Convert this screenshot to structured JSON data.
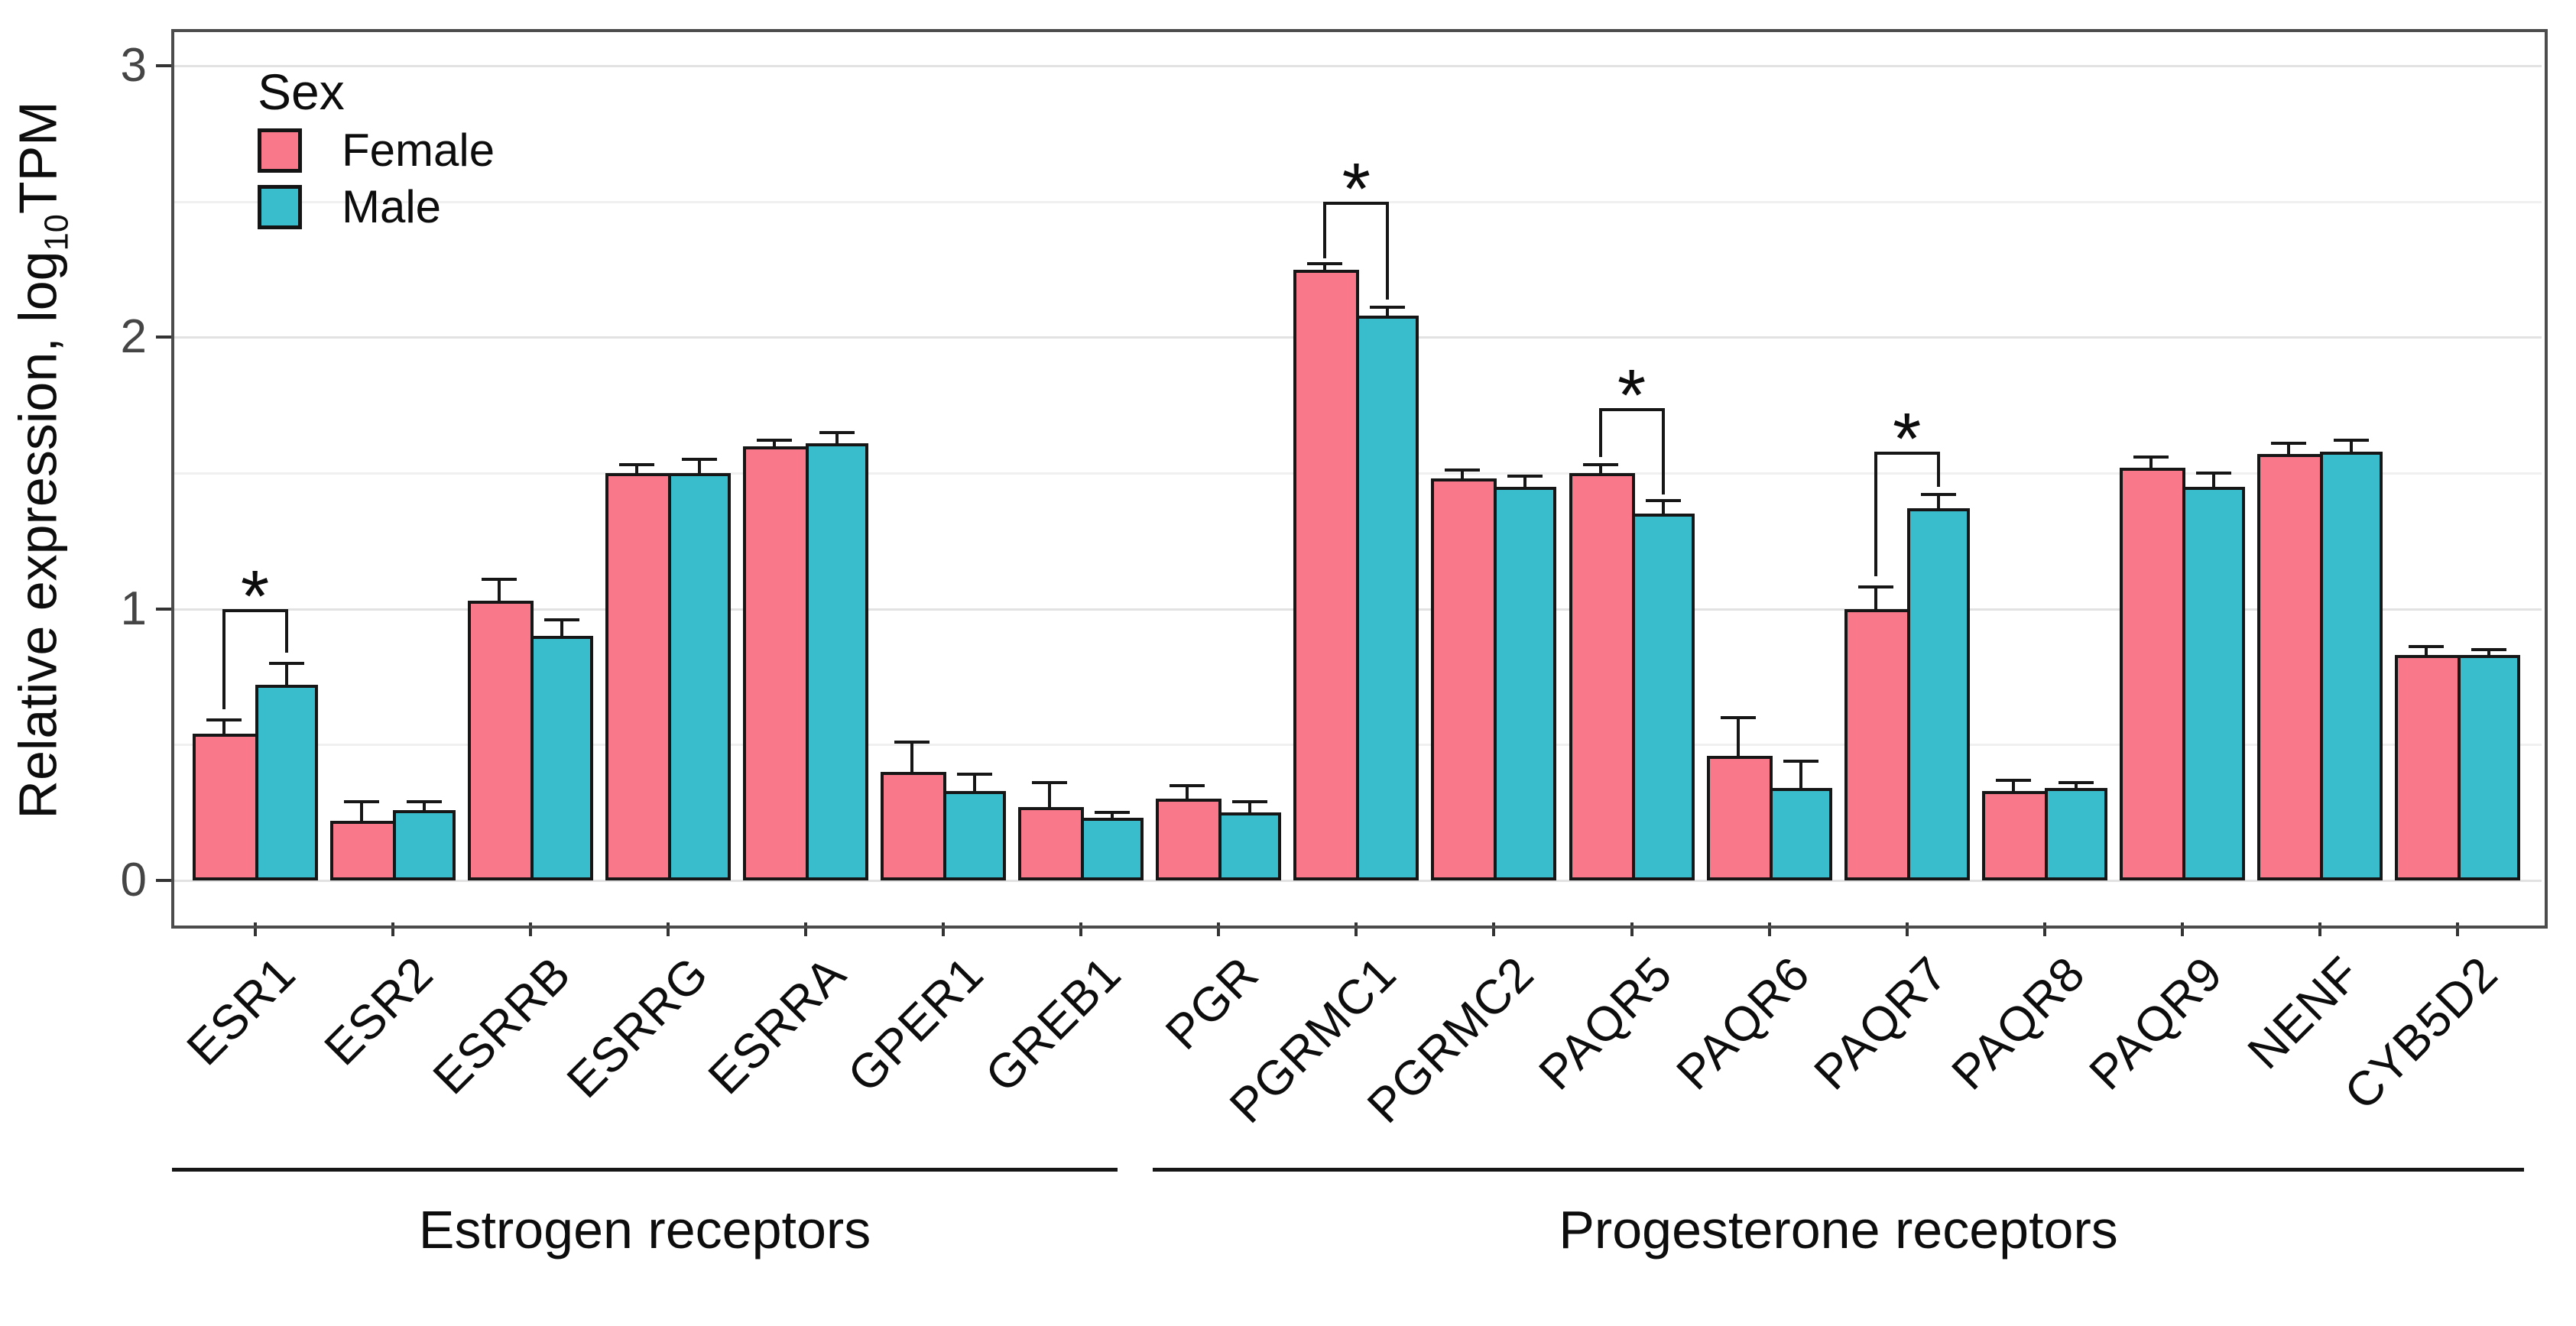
{
  "figure": {
    "legend": {
      "title": "Sex",
      "items": [
        {
          "label": "Female",
          "color": "#F9788A"
        },
        {
          "label": "Male",
          "color": "#39BCCC"
        }
      ]
    },
    "axis": {
      "y_title_prefix": "Relative expression, log",
      "y_title_sub": "10",
      "y_title_suffix": "TPM"
    }
  },
  "chart_data": {
    "type": "bar",
    "title": "",
    "xlabel": "",
    "ylabel": "Relative expression, log10TPM",
    "ylim": [
      0,
      3.16
    ],
    "yticks": [
      0,
      1,
      2,
      3
    ],
    "yticks_minor": [
      0.5,
      1.5,
      2.5
    ],
    "grid": "horizontal major and minor, light gray on white, panel framed",
    "legend_position": "inside top-left",
    "bar_mode": "grouped (dodged pairs), black outline, upper error bars",
    "categories": [
      "ESR1",
      "ESR2",
      "ESRRB",
      "ESRRG",
      "ESRRA",
      "GPER1",
      "GREB1",
      "PGR",
      "PGRMC1",
      "PGRMC2",
      "PAQR5",
      "PAQR6",
      "PAQR7",
      "PAQR8",
      "PAQR9",
      "NENF",
      "CYB5D2"
    ],
    "series": [
      {
        "name": "Female",
        "color": "#F9788A",
        "values": [
          0.54,
          0.22,
          1.03,
          1.5,
          1.6,
          0.4,
          0.27,
          0.3,
          2.25,
          1.48,
          1.5,
          0.46,
          1.0,
          0.33,
          1.52,
          1.57,
          0.83
        ],
        "errors_plus": [
          0.05,
          0.07,
          0.08,
          0.03,
          0.02,
          0.11,
          0.09,
          0.05,
          0.02,
          0.03,
          0.03,
          0.14,
          0.08,
          0.04,
          0.04,
          0.04,
          0.03
        ]
      },
      {
        "name": "Male",
        "color": "#39BCCC",
        "values": [
          0.72,
          0.26,
          0.9,
          1.5,
          1.61,
          0.33,
          0.23,
          0.25,
          2.08,
          1.45,
          1.35,
          0.34,
          1.37,
          0.34,
          1.45,
          1.58,
          0.83
        ],
        "errors_plus": [
          0.08,
          0.03,
          0.06,
          0.05,
          0.04,
          0.06,
          0.02,
          0.04,
          0.03,
          0.04,
          0.05,
          0.1,
          0.05,
          0.02,
          0.05,
          0.04,
          0.02
        ]
      }
    ],
    "significance": [
      {
        "category": "ESR1",
        "label": "*",
        "top": 1.0,
        "left_bottom": 0.63,
        "right_bottom": 0.84
      },
      {
        "category": "PGRMC1",
        "label": "*",
        "top": 2.5,
        "left_bottom": 2.29,
        "right_bottom": 2.14
      },
      {
        "category": "PAQR5",
        "label": "*",
        "top": 1.74,
        "left_bottom": 1.56,
        "right_bottom": 1.42
      },
      {
        "category": "PAQR7",
        "label": "*",
        "top": 1.58,
        "left_bottom": 1.12,
        "right_bottom": 1.45
      }
    ],
    "groups": [
      {
        "label": "Estrogen receptors",
        "from": "ESR1",
        "to": "GREB1"
      },
      {
        "label": "Progesterone receptors",
        "from": "PGR",
        "to": "CYB5D2"
      }
    ]
  }
}
